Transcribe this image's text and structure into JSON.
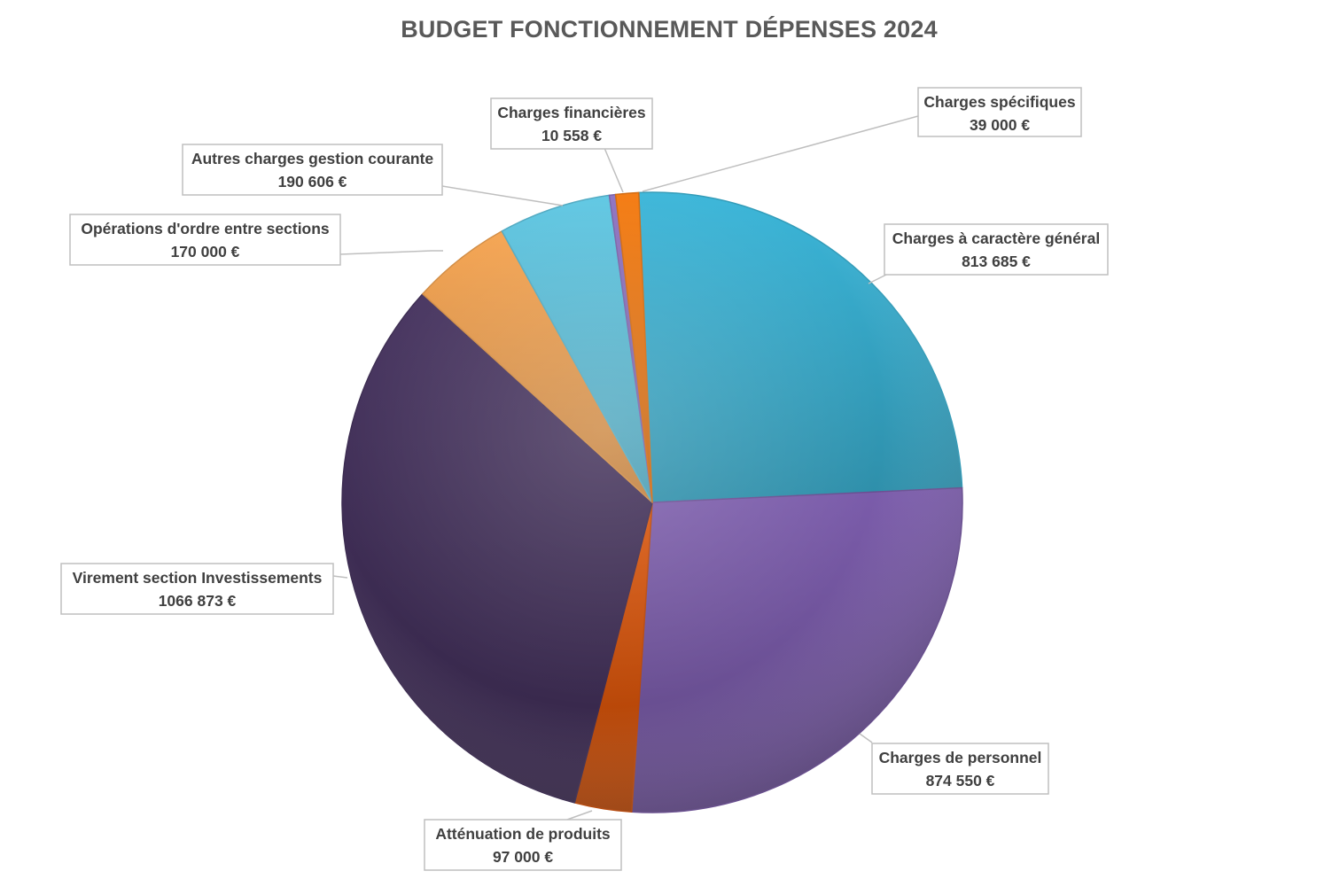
{
  "chart_data": {
    "type": "pie",
    "title": "BUDGET FONCTIONNEMENT DÉPENSES 2024",
    "slices": [
      {
        "name": "Charges à caractère général",
        "value": 813685,
        "value_label": "813 685 €",
        "color": "#3bb6d9"
      },
      {
        "name": "Charges de personnel",
        "value": 874550,
        "value_label": "874 550 €",
        "color": "#7b5cab"
      },
      {
        "name": "Atténuation de produits",
        "value": 97000,
        "value_label": "97 000 €",
        "color": "#d9540a"
      },
      {
        "name": "Virement section Investissements",
        "value": 1066873,
        "value_label": "1066 873 €",
        "color": "#45325e"
      },
      {
        "name": "Opérations d'ordre entre sections",
        "value": 170000,
        "value_label": "170 000 €",
        "color": "#f5a34f"
      },
      {
        "name": "Autres charges gestion courante",
        "value": 190606,
        "value_label": "190 606 €",
        "color": "#5ec7e3"
      },
      {
        "name": "Charges financières",
        "value": 10558,
        "value_label": "10 558 €",
        "color": "#8e72c2"
      },
      {
        "name": "Charges spécifiques",
        "value": 39000,
        "value_label": "39 000 €",
        "color": "#f57a0f"
      }
    ],
    "start_angle_deg": -2.5,
    "direction": "clockwise",
    "legend": "none"
  }
}
